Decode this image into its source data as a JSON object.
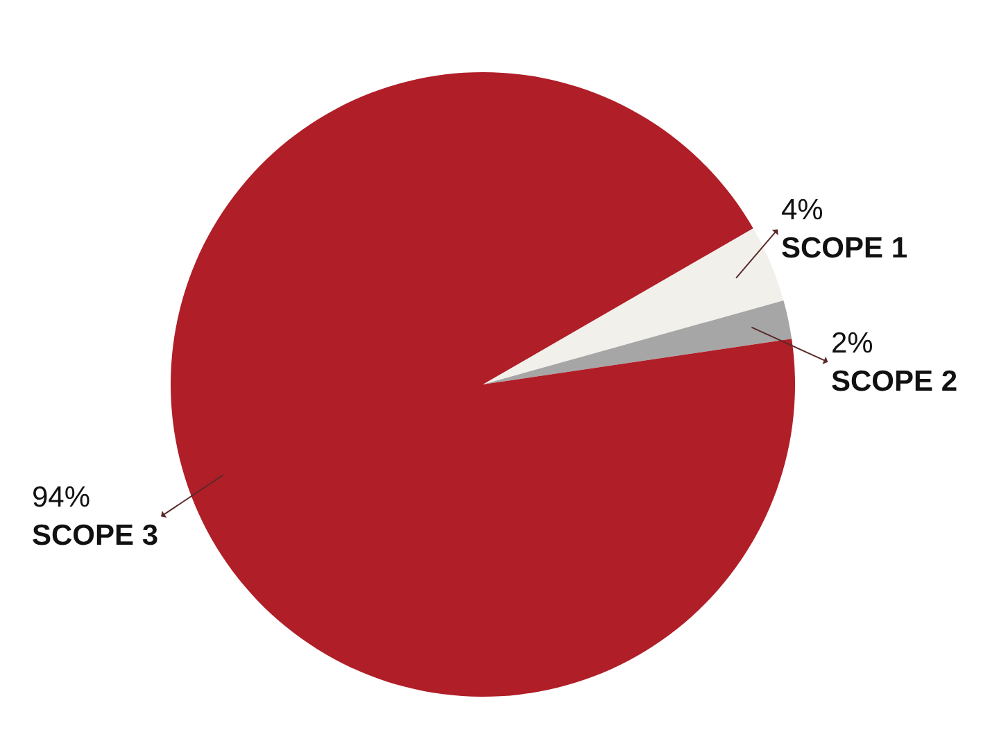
{
  "chart_data": {
    "type": "pie",
    "categories": [
      "SCOPE 1",
      "SCOPE 2",
      "SCOPE 3"
    ],
    "values": [
      4,
      2,
      94
    ],
    "value_labels": [
      "4%",
      "2%",
      "94%"
    ],
    "colors": [
      "#f2f0eb",
      "#a6a6a6",
      "#b01e28"
    ],
    "legend": false
  }
}
